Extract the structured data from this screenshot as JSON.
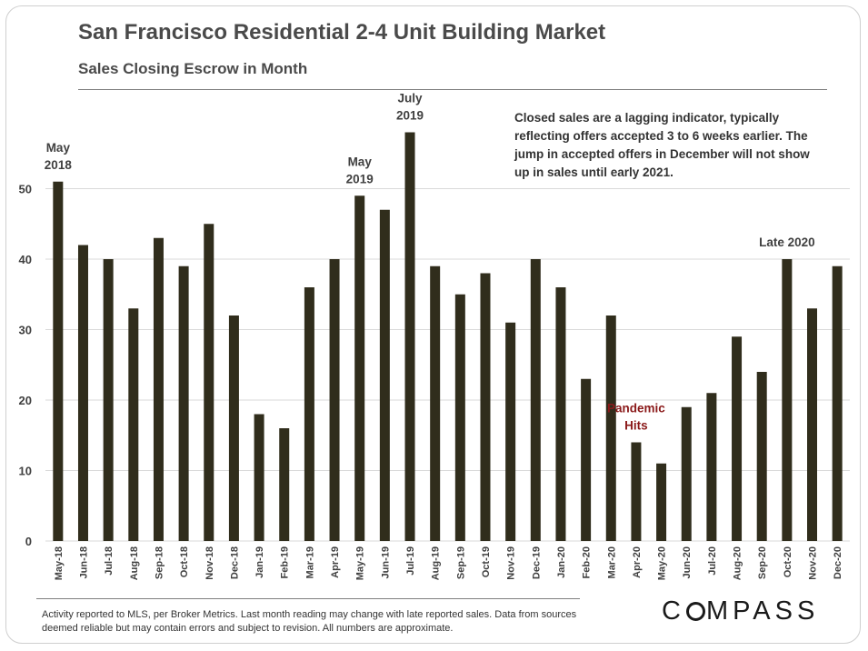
{
  "header": {
    "title": "San Francisco Residential 2-4 Unit Building Market",
    "subtitle": "Sales Closing Escrow in Month"
  },
  "note": "Closed sales are a lagging indicator, typically reflecting offers accepted 3 to 6 weeks earlier. The jump in accepted offers in December will not show up in sales until early 2021.",
  "footer": {
    "footnote": "Activity reported to MLS, per Broker Metrics. Last month reading may change with late reported sales. Data from sources deemed reliable but may contain errors and subject to revision. All numbers are approximate.",
    "logo_text": "COMPASS"
  },
  "chart_data": {
    "type": "bar",
    "categories": [
      "May-18",
      "Jun-18",
      "Jul-18",
      "Aug-18",
      "Sep-18",
      "Oct-18",
      "Nov-18",
      "Dec-18",
      "Jan-19",
      "Feb-19",
      "Mar-19",
      "Apr-19",
      "May-19",
      "Jun-19",
      "Jul-19",
      "Aug-19",
      "Sep-19",
      "Oct-19",
      "Nov-19",
      "Dec-19",
      "Jan-20",
      "Feb-20",
      "Mar-20",
      "Apr-20",
      "May-20",
      "Jun-20",
      "Jul-20",
      "Aug-20",
      "Sep-20",
      "Oct-20",
      "Nov-20",
      "Dec-20"
    ],
    "values": [
      51,
      42,
      40,
      33,
      43,
      39,
      45,
      32,
      18,
      16,
      36,
      40,
      49,
      47,
      58,
      39,
      35,
      38,
      31,
      40,
      36,
      23,
      32,
      14,
      11,
      19,
      21,
      29,
      24,
      40,
      33,
      39
    ],
    "ylim": [
      0,
      60
    ],
    "yticks": [
      0,
      10,
      20,
      30,
      40,
      50
    ],
    "grid": true,
    "bar_color": "#302d1c",
    "annotations": [
      {
        "index": 0,
        "lines": [
          "May",
          "2018"
        ],
        "color": "#404040"
      },
      {
        "index": 12,
        "lines": [
          "May",
          "2019"
        ],
        "color": "#404040"
      },
      {
        "index": 14,
        "lines": [
          "July",
          "2019"
        ],
        "color": "#404040"
      },
      {
        "index": 23,
        "lines": [
          "Pandemic",
          "Hits"
        ],
        "color": "#8b1a1a"
      },
      {
        "index": 29,
        "lines": [
          "Late 2020"
        ],
        "color": "#404040"
      }
    ]
  }
}
